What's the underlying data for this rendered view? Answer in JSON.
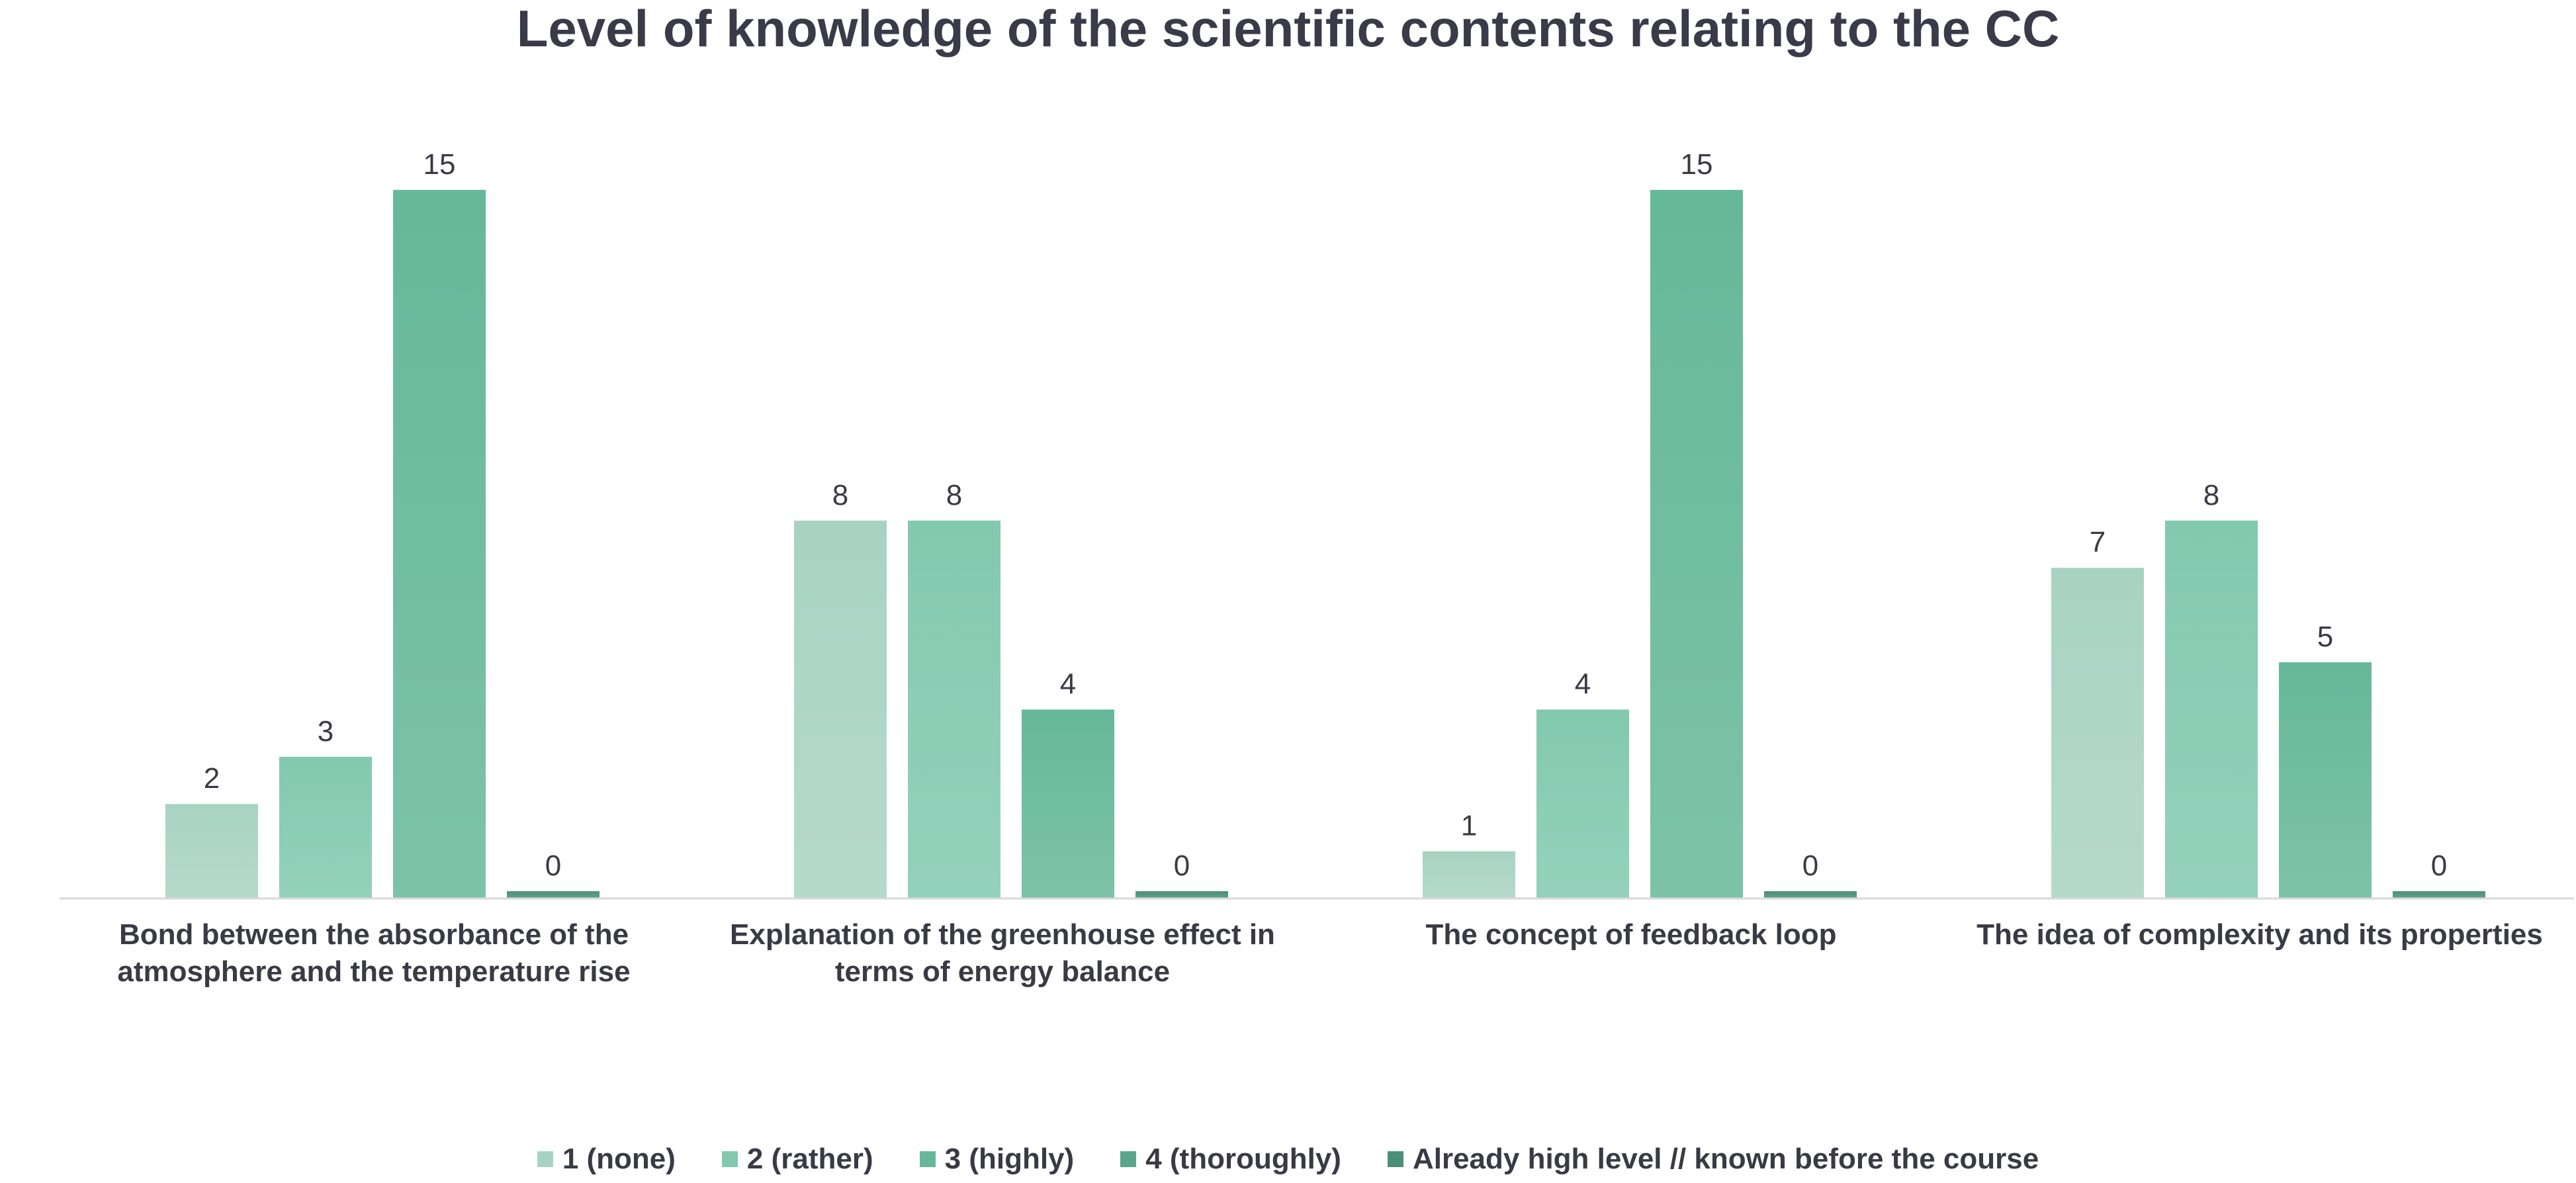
{
  "chart_data": {
    "type": "bar",
    "title": "Level of knowledge of the scientific contents relating to the CC",
    "xlabel": "",
    "ylabel": "",
    "ylim": [
      0,
      16
    ],
    "grid": false,
    "legend_position": "bottom",
    "categories": [
      "Bond between the absorbance of the atmosphere and the temperature rise",
      "Explanation of the greenhouse effect in terms of energy balance",
      "The concept of feedback loop",
      "The idea of complexity and its properties"
    ],
    "series": [
      {
        "name": "1 (none)",
        "values": [
          2,
          8,
          1,
          7
        ],
        "color": "#a8d3c2"
      },
      {
        "name": "2 (rather)",
        "values": [
          3,
          8,
          4,
          8
        ],
        "color": "#82c9b0"
      },
      {
        "name": "3 (highly)",
        "values": [
          15,
          4,
          15,
          5
        ],
        "color": "#66b89a"
      },
      {
        "name": "4 (thoroughly)",
        "values": [
          0,
          0,
          0,
          0
        ],
        "color": "#5aa58c"
      },
      {
        "name": "Already high level // known before the course",
        "values": [
          0,
          0,
          0,
          0
        ],
        "color": "#4a9078"
      }
    ],
    "bar_series_order": [
      0,
      1,
      2,
      4
    ],
    "data_labels": true
  }
}
